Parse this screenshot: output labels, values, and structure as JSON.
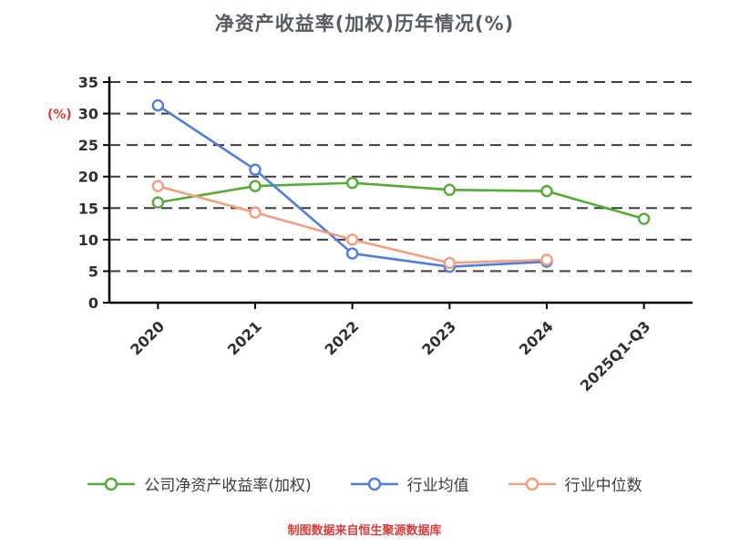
{
  "title": "净资产收益率(加权)历年情况(%)",
  "footer": "制图数据来自恒生聚源数据库",
  "colors": {
    "axis": "#000000",
    "grid": "#3d3d3d",
    "tick_text": "#2e2e2e",
    "title_text": "#5a5a64",
    "accent_red": "#e03a3a"
  },
  "chart_data": {
    "type": "line",
    "title": "净资产收益率(加权)历年情况(%)",
    "categories": [
      "2020",
      "2021",
      "2022",
      "2023",
      "2024",
      "2025Q1-Q3"
    ],
    "ylabel": "(%)",
    "ylim": [
      0,
      35
    ],
    "ytick_step": 5,
    "yticks": [
      0,
      5,
      10,
      15,
      20,
      25,
      30,
      35
    ],
    "grid": "dashed-horizontal",
    "legend_position": "bottom",
    "series": [
      {
        "name": "公司净资产收益率(加权)",
        "color": "#53ad35",
        "marker": "hollow-circle",
        "values": [
          15.9,
          18.5,
          19.0,
          17.9,
          17.7,
          13.3
        ]
      },
      {
        "name": "行业均值",
        "color": "#4f7de0",
        "marker": "hollow-circle",
        "values": [
          31.3,
          21.1,
          7.8,
          5.7,
          6.5,
          null
        ]
      },
      {
        "name": "行业中位数",
        "color": "#f59d7c",
        "marker": "hollow-circle",
        "values": [
          18.5,
          14.3,
          10.0,
          6.3,
          6.8,
          null
        ]
      }
    ]
  }
}
